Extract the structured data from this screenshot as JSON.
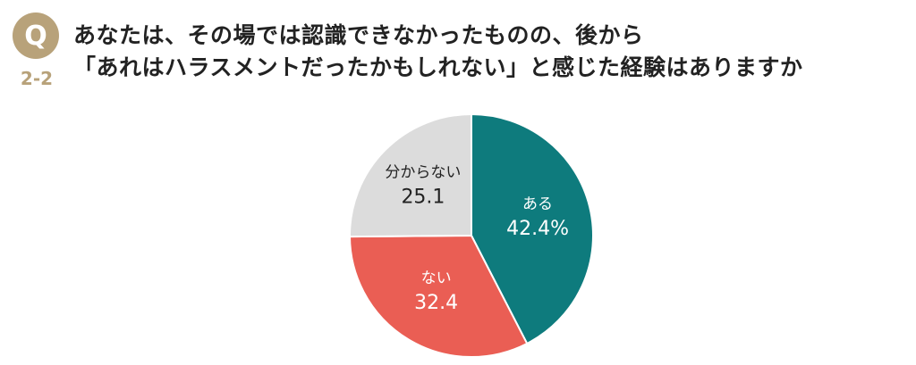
{
  "header": {
    "badge_letter": "Q",
    "question_number": "2-2",
    "question_line1": "あなたは、その場では認識できなかったものの、後から",
    "question_line2": "「あれはハラスメントだったかもしれない」と感じた経験はありますか"
  },
  "chart_data": {
    "type": "pie",
    "start_angle_deg": 0,
    "direction": "clockwise",
    "slices": [
      {
        "label": "ある",
        "value": 42.4,
        "display": "42.4%",
        "color": "#0e7b7d",
        "text_color": "#ffffff"
      },
      {
        "label": "ない",
        "value": 32.4,
        "display": "32.4",
        "color": "#ea5e54",
        "text_color": "#ffffff"
      },
      {
        "label": "分からない",
        "value": 25.1,
        "display": "25.1",
        "color": "#dcdcdc",
        "text_color": "#222222"
      }
    ]
  }
}
